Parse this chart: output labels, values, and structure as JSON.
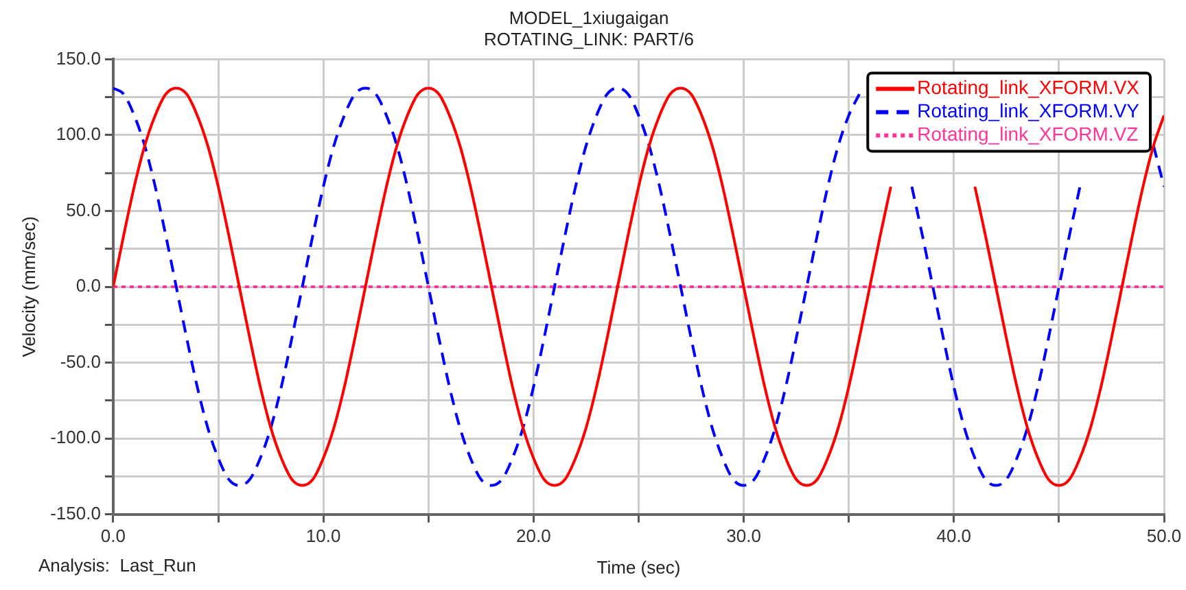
{
  "chart_data": {
    "type": "line",
    "title": "MODEL_1xiugaigan",
    "subtitle": "ROTATING_LINK: PART/6",
    "xlabel": "Time (sec)",
    "ylabel": "Velocity (mm/sec)",
    "annotations": [
      "Analysis:  Last_Run"
    ],
    "x": [
      0,
      0.5,
      1,
      1.5,
      2,
      2.5,
      3,
      3.5,
      4,
      4.5,
      5,
      5.5,
      6,
      6.5,
      7,
      7.5,
      8,
      8.5,
      9,
      9.5,
      10,
      10.5,
      11,
      11.5,
      12,
      12.5,
      13,
      13.5,
      14,
      14.5,
      15,
      15.5,
      16,
      16.5,
      17,
      17.5,
      18,
      18.5,
      19,
      19.5,
      20,
      20.5,
      21,
      21.5,
      22,
      22.5,
      23,
      23.5,
      24,
      24.5,
      25,
      25.5,
      26,
      26.5,
      27,
      27.5,
      28,
      28.5,
      29,
      29.5,
      30,
      30.5,
      31,
      31.5,
      32,
      32.5,
      33,
      33.5,
      34,
      34.5,
      35,
      35.5,
      36,
      36.5,
      37,
      37.5,
      38,
      38.5,
      39,
      39.5,
      40,
      40.5,
      41,
      41.5,
      42,
      42.5,
      43,
      43.5,
      44,
      44.5,
      45,
      45.5,
      46,
      46.5,
      47,
      47.5,
      48,
      48.5,
      49,
      49.5,
      50
    ],
    "series": [
      {
        "name": "Rotating_link_XFORM.VX",
        "color": "#ff0000",
        "line_style": "solid",
        "values": [
          0,
          34,
          66,
          93,
          113,
          127,
          131,
          127,
          113,
          93,
          66,
          34,
          0,
          -34,
          -66,
          -93,
          -113,
          -127,
          -131,
          -127,
          -113,
          -93,
          -66,
          -34,
          0,
          34,
          66,
          93,
          113,
          127,
          131,
          127,
          113,
          93,
          66,
          34,
          0,
          -34,
          -66,
          -93,
          -113,
          -127,
          -131,
          -127,
          -113,
          -93,
          -66,
          -34,
          0,
          34,
          66,
          93,
          113,
          127,
          131,
          127,
          113,
          93,
          66,
          34,
          0,
          -34,
          -66,
          -93,
          -113,
          -127,
          -131,
          -127,
          -113,
          -93,
          -66,
          -34,
          0,
          34,
          66,
          null,
          null,
          null,
          null,
          null,
          null,
          null,
          66,
          34,
          0,
          -34,
          -66,
          -93,
          -113,
          -127,
          -131,
          -127,
          -113,
          -93,
          -66,
          -34,
          0,
          34,
          66,
          93,
          113
        ]
      },
      {
        "name": "Rotating_link_XFORM.VY",
        "color": "#0000ff",
        "line_style": "dashed",
        "values": [
          131,
          127,
          113,
          93,
          66,
          34,
          0,
          -34,
          -66,
          -93,
          -113,
          -127,
          -131,
          -127,
          -113,
          -93,
          -66,
          -34,
          0,
          34,
          66,
          93,
          113,
          127,
          131,
          127,
          113,
          93,
          66,
          34,
          0,
          -34,
          -66,
          -93,
          -113,
          -127,
          -131,
          -127,
          -113,
          -93,
          -66,
          -34,
          0,
          34,
          66,
          93,
          113,
          127,
          131,
          127,
          113,
          93,
          66,
          34,
          0,
          -34,
          -66,
          -93,
          -113,
          -127,
          -131,
          -127,
          -113,
          -93,
          -66,
          -34,
          0,
          34,
          66,
          93,
          113,
          127,
          null,
          null,
          null,
          null,
          66,
          34,
          0,
          -34,
          -66,
          -93,
          -113,
          -127,
          -131,
          -127,
          -113,
          -93,
          -66,
          -34,
          0,
          34,
          66,
          null,
          null,
          null,
          null,
          null,
          null,
          93,
          66
        ]
      },
      {
        "name": "Rotating_link_XFORM.VZ",
        "color": "#ff3399",
        "line_style": "dotted",
        "values": [
          0,
          0,
          0,
          0,
          0,
          0,
          0,
          0,
          0,
          0,
          0,
          0,
          0,
          0,
          0,
          0,
          0,
          0,
          0,
          0,
          0,
          0,
          0,
          0,
          0,
          0,
          0,
          0,
          0,
          0,
          0,
          0,
          0,
          0,
          0,
          0,
          0,
          0,
          0,
          0,
          0,
          0,
          0,
          0,
          0,
          0,
          0,
          0,
          0,
          0,
          0,
          0,
          0,
          0,
          0,
          0,
          0,
          0,
          0,
          0,
          0,
          0,
          0,
          0,
          0,
          0,
          0,
          0,
          0,
          0,
          0,
          0,
          0,
          0,
          0,
          0,
          0,
          0,
          0,
          0,
          0,
          0,
          0,
          0,
          0,
          0,
          0,
          0,
          0,
          0,
          0,
          0,
          0,
          0,
          0,
          0,
          0,
          0,
          0,
          0,
          0
        ]
      }
    ],
    "xlim": [
      0,
      50
    ],
    "ylim": [
      -150,
      150
    ],
    "xticks": [
      {
        "value": 0,
        "label": "0.0"
      },
      {
        "value": 5,
        "label": null
      },
      {
        "value": 10,
        "label": "10.0"
      },
      {
        "value": 15,
        "label": null
      },
      {
        "value": 20,
        "label": "20.0"
      },
      {
        "value": 25,
        "label": null
      },
      {
        "value": 30,
        "label": "30.0"
      },
      {
        "value": 35,
        "label": null
      },
      {
        "value": 40,
        "label": "40.0"
      },
      {
        "value": 45,
        "label": null
      },
      {
        "value": 50,
        "label": "50.0"
      }
    ],
    "yticks": [
      {
        "value": -150,
        "label": "-150.0"
      },
      {
        "value": -125,
        "label": null
      },
      {
        "value": -100,
        "label": "-100.0"
      },
      {
        "value": -75,
        "label": null
      },
      {
        "value": -50,
        "label": "-50.0"
      },
      {
        "value": -25,
        "label": null
      },
      {
        "value": 0,
        "label": "0.0"
      },
      {
        "value": 25,
        "label": null
      },
      {
        "value": 50,
        "label": "50.0"
      },
      {
        "value": 75,
        "label": null
      },
      {
        "value": 100,
        "label": "100.0"
      },
      {
        "value": 125,
        "label": null
      },
      {
        "value": 150,
        "label": "150.0"
      }
    ],
    "grid": true,
    "legend": "top right",
    "marker": "none"
  }
}
